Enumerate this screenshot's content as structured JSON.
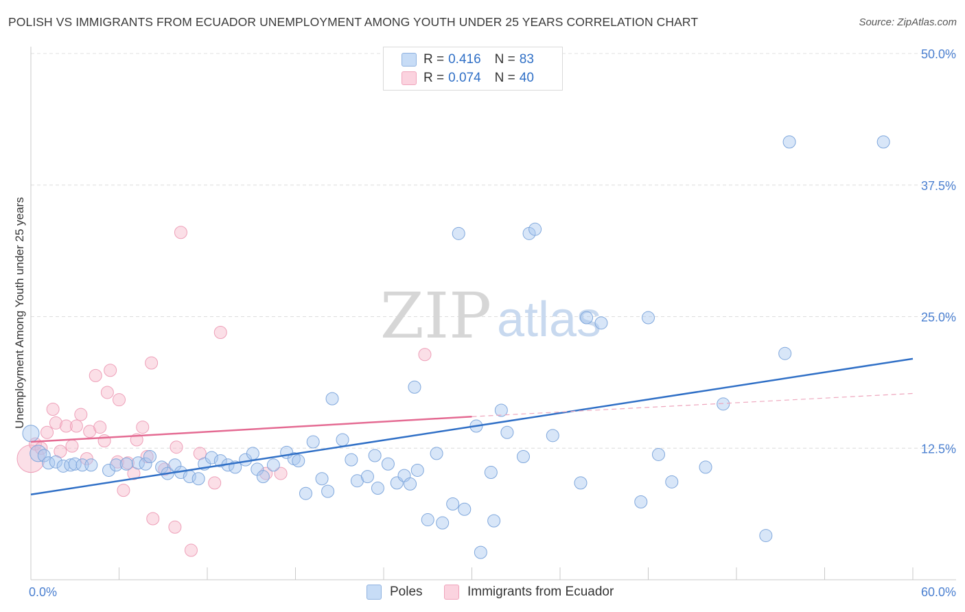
{
  "title": "POLISH VS IMMIGRANTS FROM ECUADOR UNEMPLOYMENT AMONG YOUTH UNDER 25 YEARS CORRELATION CHART",
  "source": "Source: ZipAtlas.com",
  "watermark": {
    "zip": "ZIP",
    "atlas": "atlas"
  },
  "legend_top": [
    {
      "r_label": "R =",
      "r_value": "0.416",
      "n_label": "N =",
      "n_value": "83",
      "color": "#a9c8f0"
    },
    {
      "r_label": "R =",
      "r_value": "0.074",
      "n_label": "N =",
      "n_value": "40",
      "color": "#f6b9c9"
    }
  ],
  "legend_bottom": [
    {
      "label": "Poles",
      "color": "#a9c8f0"
    },
    {
      "label": "Immigrants from Ecuador",
      "color": "#f6b9c9"
    }
  ],
  "colors": {
    "blue": "#2f6fc6",
    "pink": "#e46a92",
    "blue_fill": "#a9c8f0",
    "pink_fill": "#f6b9c9",
    "tick_label": "#4a7fd0"
  },
  "chart_data": {
    "type": "scatter",
    "title": "POLISH VS IMMIGRANTS FROM ECUADOR UNEMPLOYMENT AMONG YOUTH UNDER 25 YEARS CORRELATION CHART",
    "xlabel": "",
    "ylabel": "Unemployment Among Youth under 25 years",
    "xlim": [
      0,
      60
    ],
    "ylim": [
      0,
      50
    ],
    "x_tick_labels": [
      "0.0%",
      "60.0%"
    ],
    "y_ticks": [
      12.5,
      25.0,
      37.5,
      50.0
    ],
    "y_tick_labels": [
      "12.5%",
      "25.0%",
      "37.5%",
      "50.0%"
    ],
    "grid": true,
    "series": [
      {
        "name": "Poles",
        "points": [
          [
            0.0,
            13.9
          ],
          [
            0.5,
            12.0
          ],
          [
            0.9,
            11.8
          ],
          [
            1.2,
            11.1
          ],
          [
            1.7,
            11.2
          ],
          [
            2.2,
            10.8
          ],
          [
            2.7,
            10.9
          ],
          [
            3.0,
            11.0
          ],
          [
            3.5,
            10.9
          ],
          [
            4.1,
            10.9
          ],
          [
            5.3,
            10.4
          ],
          [
            5.8,
            10.9
          ],
          [
            6.5,
            11.0
          ],
          [
            7.3,
            11.1
          ],
          [
            7.8,
            11.0
          ],
          [
            8.1,
            11.7
          ],
          [
            8.9,
            10.7
          ],
          [
            9.3,
            10.1
          ],
          [
            9.8,
            10.9
          ],
          [
            10.2,
            10.2
          ],
          [
            10.8,
            9.8
          ],
          [
            11.4,
            9.6
          ],
          [
            11.8,
            11.0
          ],
          [
            12.3,
            11.6
          ],
          [
            12.9,
            11.3
          ],
          [
            13.4,
            10.9
          ],
          [
            13.9,
            10.7
          ],
          [
            14.6,
            11.4
          ],
          [
            15.1,
            12.0
          ],
          [
            15.4,
            10.5
          ],
          [
            15.8,
            9.8
          ],
          [
            16.5,
            10.9
          ],
          [
            17.4,
            12.1
          ],
          [
            17.9,
            11.5
          ],
          [
            18.2,
            11.3
          ],
          [
            18.7,
            8.2
          ],
          [
            19.2,
            13.1
          ],
          [
            19.8,
            9.6
          ],
          [
            20.2,
            8.4
          ],
          [
            20.5,
            17.2
          ],
          [
            21.2,
            13.3
          ],
          [
            21.8,
            11.4
          ],
          [
            22.2,
            9.4
          ],
          [
            22.9,
            9.8
          ],
          [
            23.4,
            11.8
          ],
          [
            23.6,
            8.7
          ],
          [
            24.3,
            11.0
          ],
          [
            24.9,
            9.2
          ],
          [
            25.4,
            9.9
          ],
          [
            25.8,
            9.1
          ],
          [
            26.3,
            10.4
          ],
          [
            26.1,
            18.3
          ],
          [
            27.0,
            5.7
          ],
          [
            27.6,
            12.0
          ],
          [
            28.0,
            5.4
          ],
          [
            28.7,
            7.2
          ],
          [
            29.1,
            32.9
          ],
          [
            29.5,
            6.7
          ],
          [
            30.3,
            14.6
          ],
          [
            30.6,
            2.6
          ],
          [
            31.3,
            10.2
          ],
          [
            31.5,
            5.6
          ],
          [
            32.0,
            16.1
          ],
          [
            32.4,
            14.0
          ],
          [
            33.5,
            11.7
          ],
          [
            33.9,
            32.9
          ],
          [
            34.3,
            33.3
          ],
          [
            35.5,
            13.7
          ],
          [
            37.4,
            9.2
          ],
          [
            37.8,
            24.9
          ],
          [
            38.8,
            24.4
          ],
          [
            41.5,
            7.4
          ],
          [
            42.0,
            24.9
          ],
          [
            42.7,
            11.9
          ],
          [
            43.6,
            9.3
          ],
          [
            45.9,
            10.7
          ],
          [
            47.1,
            16.7
          ],
          [
            50.0,
            4.2
          ],
          [
            51.3,
            21.5
          ],
          [
            51.6,
            41.6
          ],
          [
            58.0,
            41.6
          ]
        ],
        "trend": [
          [
            0,
            8.1
          ],
          [
            60,
            21.0
          ]
        ]
      },
      {
        "name": "Immigrants from Ecuador",
        "points": [
          [
            0.0,
            11.5
          ],
          [
            0.3,
            12.9
          ],
          [
            0.7,
            12.5
          ],
          [
            1.1,
            14.0
          ],
          [
            1.5,
            16.2
          ],
          [
            1.7,
            14.9
          ],
          [
            2.0,
            12.2
          ],
          [
            2.4,
            14.6
          ],
          [
            2.8,
            12.7
          ],
          [
            3.1,
            14.6
          ],
          [
            3.4,
            15.7
          ],
          [
            3.8,
            11.5
          ],
          [
            4.0,
            14.1
          ],
          [
            4.4,
            19.4
          ],
          [
            4.7,
            14.5
          ],
          [
            5.0,
            13.2
          ],
          [
            5.2,
            17.8
          ],
          [
            5.4,
            19.9
          ],
          [
            5.9,
            11.2
          ],
          [
            6.0,
            17.1
          ],
          [
            6.3,
            8.5
          ],
          [
            6.6,
            11.1
          ],
          [
            7.0,
            10.1
          ],
          [
            7.2,
            13.3
          ],
          [
            7.6,
            14.5
          ],
          [
            7.9,
            11.7
          ],
          [
            8.2,
            20.6
          ],
          [
            8.3,
            5.8
          ],
          [
            9.1,
            10.5
          ],
          [
            9.8,
            5.0
          ],
          [
            9.9,
            12.6
          ],
          [
            10.2,
            33.0
          ],
          [
            10.9,
            2.8
          ],
          [
            11.5,
            12.0
          ],
          [
            12.5,
            9.2
          ],
          [
            12.9,
            23.5
          ],
          [
            16.0,
            10.1
          ],
          [
            17.0,
            10.1
          ],
          [
            26.8,
            21.4
          ]
        ],
        "trend": [
          [
            0,
            13.1
          ],
          [
            30,
            15.5
          ]
        ],
        "trend_extension": [
          [
            30,
            15.5
          ],
          [
            60,
            17.7
          ]
        ]
      }
    ]
  }
}
